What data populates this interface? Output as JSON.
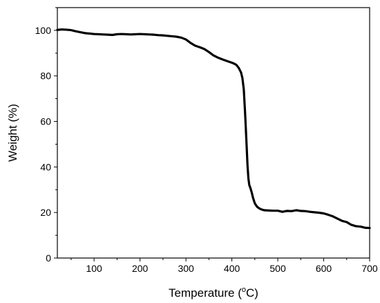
{
  "chart_data": {
    "type": "line",
    "xlabel": "Temperature (",
    "xlabel_sup": "o",
    "xlabel_unit": "C)",
    "ylabel": "Weight (%)",
    "xlim": [
      20,
      700
    ],
    "ylim": [
      0,
      110
    ],
    "x_ticks": [
      100,
      200,
      300,
      400,
      500,
      600,
      700
    ],
    "y_ticks": [
      0,
      20,
      40,
      60,
      80,
      100
    ],
    "grid": false,
    "line_color": "#000000",
    "series": [
      {
        "x": [
          20,
          30,
          40,
          50,
          60,
          70,
          80,
          90,
          100,
          110,
          120,
          130,
          140,
          150,
          160,
          170,
          180,
          190,
          200,
          210,
          220,
          230,
          240,
          250,
          260,
          270,
          280,
          290,
          300,
          310,
          320,
          330,
          340,
          350,
          360,
          370,
          380,
          390,
          400,
          405,
          410,
          415,
          420,
          423,
          426,
          429,
          432,
          434,
          436,
          438,
          440,
          443,
          446,
          450,
          455,
          460,
          465,
          470,
          480,
          490,
          500,
          510,
          520,
          530,
          540,
          550,
          560,
          570,
          580,
          590,
          600,
          610,
          620,
          630,
          640,
          650,
          660,
          670,
          680,
          690,
          700
        ],
        "y": [
          100.2,
          100.4,
          100.3,
          100.1,
          99.6,
          99.2,
          98.8,
          98.6,
          98.4,
          98.3,
          98.2,
          98.1,
          98.0,
          98.3,
          98.4,
          98.3,
          98.2,
          98.3,
          98.4,
          98.3,
          98.2,
          98.1,
          97.9,
          97.8,
          97.6,
          97.4,
          97.2,
          96.8,
          96.0,
          94.5,
          93.3,
          92.6,
          91.8,
          90.5,
          89.0,
          88.0,
          87.2,
          86.5,
          85.8,
          85.4,
          84.8,
          83.5,
          81.5,
          79.0,
          74.0,
          63.0,
          50.0,
          41.0,
          35.0,
          32.0,
          31.0,
          29.0,
          26.5,
          24.0,
          22.5,
          21.8,
          21.3,
          21.0,
          20.9,
          20.8,
          20.8,
          20.3,
          20.7,
          20.6,
          21.0,
          20.7,
          20.6,
          20.3,
          20.1,
          19.9,
          19.6,
          19.0,
          18.3,
          17.3,
          16.3,
          15.8,
          14.6,
          14.0,
          13.8,
          13.3,
          13.2
        ]
      }
    ]
  }
}
